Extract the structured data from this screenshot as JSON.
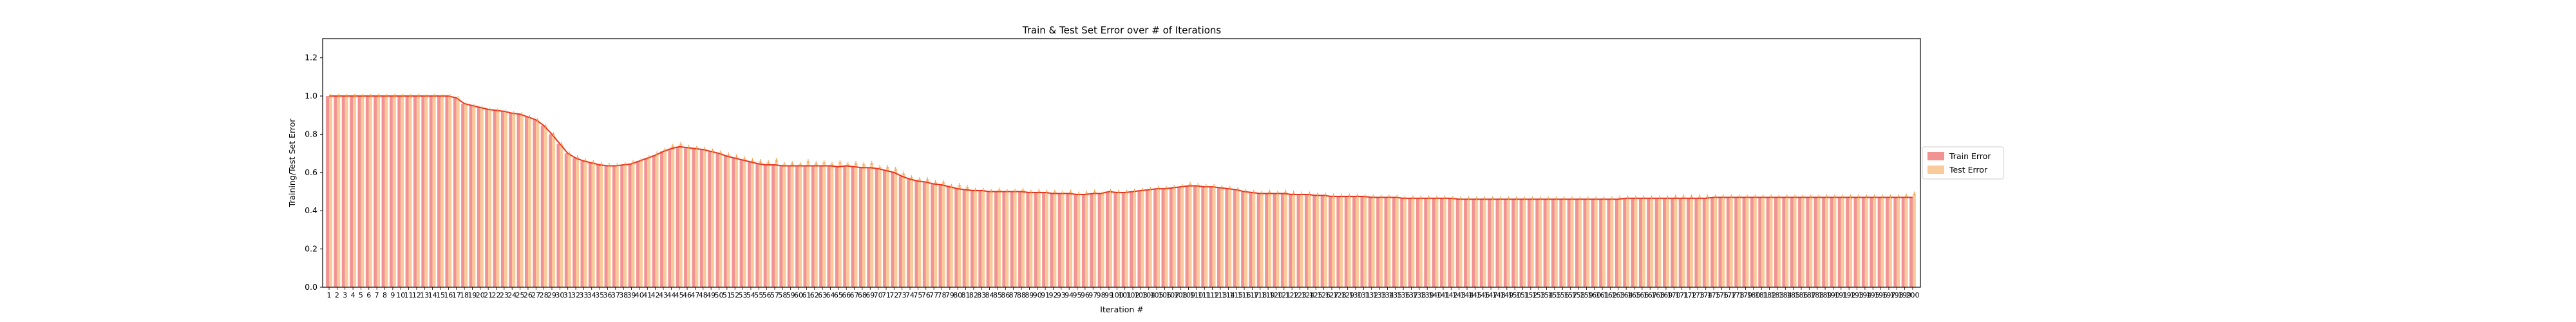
{
  "chart_data": {
    "type": "bar",
    "title": "Train & Test Set Error over # of Iterations",
    "xlabel": "Iteration #",
    "ylabel": "Training/Test Set Error",
    "ylim": [
      0.0,
      1.3
    ],
    "yticks": [
      "0.0",
      "0.2",
      "0.4",
      "0.6",
      "0.8",
      "1.0",
      "1.2"
    ],
    "x_start": 1,
    "x_end": 200,
    "grid": false,
    "legend_position": "right",
    "series": [
      {
        "name": "Train Error",
        "color": "#f08080",
        "line_color": "#e8341c",
        "values": [
          1.0,
          1.0,
          1.0,
          1.0,
          1.0,
          1.0,
          1.0,
          1.0,
          1.0,
          1.0,
          1.0,
          1.0,
          1.0,
          1.0,
          1.0,
          1.0,
          0.99,
          0.96,
          0.95,
          0.94,
          0.93,
          0.925,
          0.92,
          0.91,
          0.905,
          0.89,
          0.875,
          0.845,
          0.8,
          0.75,
          0.7,
          0.675,
          0.66,
          0.65,
          0.64,
          0.635,
          0.635,
          0.64,
          0.645,
          0.66,
          0.675,
          0.69,
          0.71,
          0.725,
          0.735,
          0.73,
          0.725,
          0.72,
          0.71,
          0.7,
          0.685,
          0.675,
          0.665,
          0.655,
          0.645,
          0.64,
          0.64,
          0.635,
          0.635,
          0.635,
          0.635,
          0.635,
          0.635,
          0.635,
          0.63,
          0.635,
          0.63,
          0.625,
          0.625,
          0.62,
          0.61,
          0.6,
          0.58,
          0.565,
          0.555,
          0.55,
          0.54,
          0.535,
          0.525,
          0.515,
          0.51,
          0.505,
          0.505,
          0.5,
          0.5,
          0.5,
          0.5,
          0.5,
          0.495,
          0.495,
          0.495,
          0.49,
          0.49,
          0.49,
          0.485,
          0.485,
          0.49,
          0.49,
          0.5,
          0.495,
          0.495,
          0.5,
          0.505,
          0.51,
          0.515,
          0.515,
          0.52,
          0.525,
          0.53,
          0.53,
          0.525,
          0.525,
          0.52,
          0.515,
          0.51,
          0.5,
          0.495,
          0.49,
          0.49,
          0.49,
          0.49,
          0.485,
          0.485,
          0.485,
          0.48,
          0.48,
          0.475,
          0.475,
          0.475,
          0.475,
          0.475,
          0.47,
          0.47,
          0.47,
          0.47,
          0.465,
          0.465,
          0.465,
          0.465,
          0.465,
          0.465,
          0.465,
          0.46,
          0.46,
          0.46,
          0.46,
          0.46,
          0.46,
          0.46,
          0.46,
          0.46,
          0.46,
          0.46,
          0.46,
          0.46,
          0.46,
          0.46,
          0.46,
          0.46,
          0.46,
          0.46,
          0.46,
          0.46,
          0.465,
          0.465,
          0.465,
          0.465,
          0.465,
          0.465,
          0.465,
          0.465,
          0.465,
          0.465,
          0.465,
          0.47,
          0.47,
          0.47,
          0.47,
          0.47,
          0.47,
          0.47,
          0.47,
          0.47,
          0.47,
          0.47,
          0.47,
          0.47,
          0.47,
          0.47,
          0.47,
          0.47,
          0.47,
          0.47,
          0.47,
          0.47,
          0.47,
          0.47,
          0.47,
          0.47,
          0.47,
          0.47,
          0.47,
          0.47,
          0.47,
          0.475,
          0.48,
          0.49,
          0.47,
          0.47
        ]
      },
      {
        "name": "Test Error",
        "color": "#f8c28a",
        "values": [
          1.0,
          1.0,
          1.0,
          1.0,
          1.0,
          1.0,
          1.0,
          1.0,
          1.0,
          1.0,
          1.0,
          1.0,
          1.0,
          1.0,
          1.0,
          1.0,
          0.99,
          0.96,
          0.95,
          0.94,
          0.93,
          0.925,
          0.92,
          0.91,
          0.905,
          0.89,
          0.875,
          0.845,
          0.8,
          0.75,
          0.7,
          0.68,
          0.665,
          0.655,
          0.645,
          0.64,
          0.64,
          0.645,
          0.655,
          0.665,
          0.68,
          0.7,
          0.72,
          0.74,
          0.75,
          0.735,
          0.73,
          0.725,
          0.715,
          0.705,
          0.695,
          0.685,
          0.675,
          0.665,
          0.66,
          0.655,
          0.665,
          0.645,
          0.65,
          0.645,
          0.66,
          0.65,
          0.655,
          0.645,
          0.655,
          0.645,
          0.65,
          0.645,
          0.65,
          0.63,
          0.63,
          0.62,
          0.595,
          0.575,
          0.565,
          0.565,
          0.55,
          0.55,
          0.53,
          0.535,
          0.525,
          0.51,
          0.51,
          0.505,
          0.51,
          0.505,
          0.505,
          0.51,
          0.5,
          0.505,
          0.5,
          0.5,
          0.495,
          0.5,
          0.49,
          0.495,
          0.5,
          0.49,
          0.505,
          0.5,
          0.5,
          0.505,
          0.51,
          0.515,
          0.52,
          0.52,
          0.525,
          0.53,
          0.54,
          0.535,
          0.53,
          0.53,
          0.525,
          0.52,
          0.515,
          0.505,
          0.5,
          0.495,
          0.5,
          0.495,
          0.5,
          0.495,
          0.49,
          0.49,
          0.485,
          0.485,
          0.48,
          0.48,
          0.48,
          0.48,
          0.475,
          0.475,
          0.475,
          0.475,
          0.475,
          0.47,
          0.47,
          0.47,
          0.47,
          0.47,
          0.47,
          0.465,
          0.465,
          0.465,
          0.465,
          0.465,
          0.465,
          0.465,
          0.465,
          0.465,
          0.465,
          0.465,
          0.465,
          0.465,
          0.465,
          0.465,
          0.465,
          0.465,
          0.465,
          0.465,
          0.465,
          0.465,
          0.47,
          0.47,
          0.47,
          0.47,
          0.47,
          0.47,
          0.47,
          0.475,
          0.475,
          0.475,
          0.475,
          0.475,
          0.475,
          0.475,
          0.475,
          0.475,
          0.475,
          0.475,
          0.475,
          0.475,
          0.475,
          0.475,
          0.475,
          0.475,
          0.475,
          0.475,
          0.475,
          0.475,
          0.475,
          0.475,
          0.475,
          0.475,
          0.475,
          0.475,
          0.475,
          0.475,
          0.48,
          0.49,
          0.5,
          0.48,
          0.48
        ]
      }
    ]
  }
}
